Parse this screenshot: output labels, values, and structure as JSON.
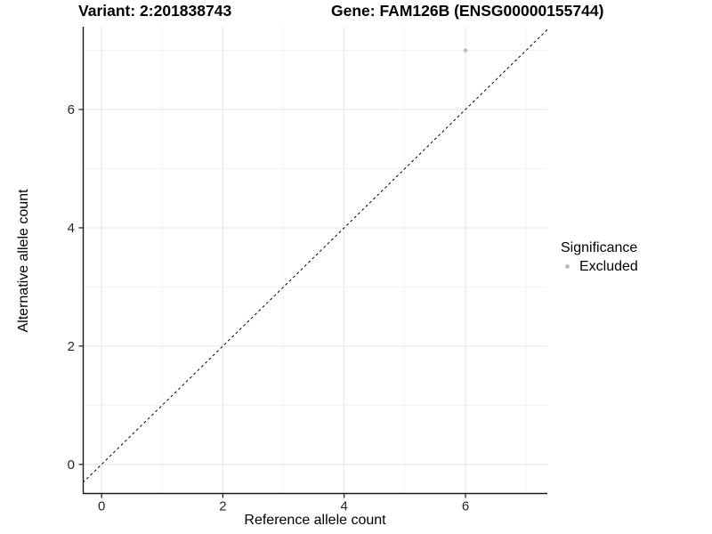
{
  "titles": {
    "variant": "Variant: 2:201838743",
    "gene": "Gene: FAM126B (ENSG00000155744)"
  },
  "chart_data": {
    "type": "scatter",
    "title_left": "Variant: 2:201838743",
    "title_right": "Gene: FAM126B (ENSG00000155744)",
    "xlabel": "Reference allele count",
    "ylabel": "Alternative allele count",
    "x_ticks": [
      0,
      2,
      4,
      6
    ],
    "y_ticks": [
      0,
      2,
      4,
      6
    ],
    "x_minor_gridlines": [
      1,
      3,
      5,
      7
    ],
    "y_minor_gridlines": [
      1,
      3,
      5,
      7
    ],
    "xlim": [
      -0.31,
      7.35
    ],
    "ylim": [
      -0.5,
      7.4
    ],
    "grid": "on",
    "points": [
      {
        "x": 6,
        "y": 7,
        "series": "Excluded"
      }
    ],
    "reference_line": {
      "kind": "identity y=x",
      "style": "dashed",
      "color": "#000000"
    },
    "legend": {
      "title": "Significance",
      "position": "right",
      "items": [
        {
          "label": "Excluded",
          "color": "#BDBDBD"
        }
      ]
    },
    "colors": {
      "point": "#BDBDBD",
      "grid_major": "#E4E4E4",
      "grid_minor": "#F1F1F1",
      "axis_line": "#1a1a1a",
      "tick_label": "#262626"
    }
  }
}
